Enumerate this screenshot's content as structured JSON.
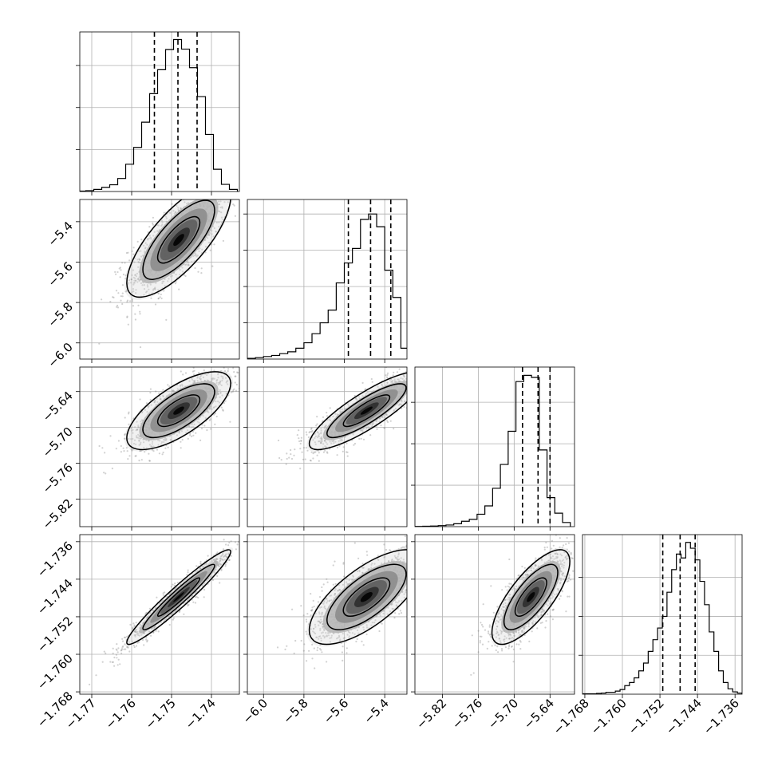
{
  "figure": {
    "type": "corner-plot",
    "variable_count": 4,
    "axis_ranges": [
      [
        -1.773,
        -1.733
      ],
      [
        -6.08,
        -5.29
      ],
      [
        -5.866,
        -5.599
      ],
      [
        -1.7685,
        -1.7345
      ]
    ],
    "grid": true
  },
  "chart_data": [
    {
      "type": "histogram",
      "variable_index": 0,
      "bins": [
        -1.7725,
        -1.7705,
        -1.7685,
        -1.7665,
        -1.7645,
        -1.7625,
        -1.7605,
        -1.7585,
        -1.7565,
        -1.7545,
        -1.7525,
        -1.7505,
        -1.7485,
        -1.7465,
        -1.7445,
        -1.7425,
        -1.7405,
        -1.7385,
        -1.7365,
        -1.7345
      ],
      "counts": [
        1,
        2,
        5,
        10,
        16,
        31,
        65,
        105,
        165,
        233,
        290,
        338,
        362,
        339,
        295,
        226,
        136,
        53,
        17,
        5
      ],
      "quantiles": [
        -1.7543,
        -1.7484,
        -1.7436
      ],
      "y_ticks": [
        100,
        200,
        300
      ],
      "ylim": [
        0,
        380
      ]
    },
    {
      "type": "histogram",
      "variable_index": 1,
      "bins": [
        -6.06,
        -6.02,
        -5.98,
        -5.94,
        -5.9,
        -5.86,
        -5.82,
        -5.78,
        -5.74,
        -5.7,
        -5.66,
        -5.62,
        -5.58,
        -5.54,
        -5.5,
        -5.46,
        -5.42,
        -5.38,
        -5.34,
        -5.3
      ],
      "counts": [
        2,
        4,
        7,
        10,
        15,
        20,
        30,
        45,
        70,
        100,
        135,
        210,
        265,
        305,
        385,
        400,
        365,
        245,
        170,
        30
      ],
      "quantiles": [
        -5.58,
        -5.47,
        -5.37
      ],
      "y_ticks": [
        100,
        200,
        300,
        400
      ],
      "ylim": [
        0,
        440
      ]
    },
    {
      "type": "histogram",
      "variable_index": 2,
      "bins": [
        -5.8595,
        -5.8465,
        -5.8335,
        -5.8205,
        -5.8075,
        -5.7945,
        -5.7815,
        -5.7685,
        -5.7555,
        -5.7425,
        -5.7295,
        -5.7165,
        -5.7035,
        -5.6905,
        -5.6775,
        -5.6645,
        -5.6515,
        -5.6385,
        -5.6255,
        -5.6125
      ],
      "counts": [
        1,
        2,
        3,
        5,
        8,
        14,
        26,
        35,
        60,
        100,
        185,
        300,
        460,
        700,
        730,
        720,
        370,
        140,
        65,
        20
      ],
      "quantiles": [
        -5.686,
        -5.66,
        -5.64
      ],
      "y_ticks": [
        200,
        400,
        600
      ],
      "ylim": [
        0,
        770
      ]
    },
    {
      "type": "histogram",
      "variable_index": 3,
      "bins": [
        -1.768,
        -1.767,
        -1.766,
        -1.765,
        -1.764,
        -1.763,
        -1.762,
        -1.761,
        -1.76,
        -1.759,
        -1.758,
        -1.757,
        -1.756,
        -1.755,
        -1.754,
        -1.753,
        -1.752,
        -1.751,
        -1.75,
        -1.749,
        -1.748,
        -1.747,
        -1.746,
        -1.745,
        -1.744,
        -1.743,
        -1.742,
        -1.741,
        -1.74,
        -1.739,
        -1.738,
        -1.737,
        -1.736,
        -1.735
      ],
      "counts": [
        1,
        1,
        1,
        2,
        3,
        5,
        5,
        8,
        12,
        22,
        30,
        42,
        60,
        80,
        110,
        140,
        170,
        200,
        262,
        320,
        360,
        350,
        390,
        375,
        345,
        290,
        230,
        160,
        110,
        60,
        30,
        14,
        6,
        3
      ],
      "quantiles": [
        -1.7514,
        -1.7477,
        -1.7445
      ],
      "y_ticks": [
        100,
        200,
        300
      ],
      "ylim": [
        0,
        410
      ]
    },
    {
      "type": "scatter-density",
      "x_index": 0,
      "y_index": 1,
      "mean": [
        -1.7482,
        -5.49
      ],
      "sd": [
        0.0062,
        0.135
      ],
      "corr": 0.75,
      "x_ticks": [
        -1.77,
        -1.76,
        -1.75,
        -1.74
      ],
      "y_ticks": [
        -6.0,
        -5.8,
        -5.6,
        -5.4
      ]
    },
    {
      "type": "scatter-density",
      "x_index": 0,
      "y_index": 2,
      "mean": [
        -1.7482,
        -5.672
      ],
      "sd": [
        0.0062,
        0.031
      ],
      "corr": 0.7,
      "y_ticks": [
        -5.82,
        -5.76,
        -5.7,
        -5.64
      ]
    },
    {
      "type": "scatter-density",
      "x_index": 0,
      "y_index": 3,
      "mean": [
        -1.7482,
        -1.7478
      ],
      "sd": [
        0.0062,
        0.0048
      ],
      "corr": 0.96,
      "y_ticks": [
        -1.768,
        -1.76,
        -1.752,
        -1.744,
        -1.736
      ]
    },
    {
      "type": "scatter-density",
      "x_index": 1,
      "y_index": 2,
      "mean": [
        -5.49,
        -5.672
      ],
      "sd": [
        0.135,
        0.031
      ],
      "corr": 0.85
    },
    {
      "type": "scatter-density",
      "x_index": 1,
      "y_index": 3,
      "mean": [
        -5.49,
        -1.7478
      ],
      "sd": [
        0.135,
        0.0048
      ],
      "corr": 0.7
    },
    {
      "type": "scatter-density",
      "x_index": 2,
      "y_index": 3,
      "mean": [
        -5.672,
        -1.7478
      ],
      "sd": [
        0.031,
        0.0048
      ],
      "corr": 0.75
    }
  ],
  "axis_tick_labels": {
    "x_var0": [
      "−1.77",
      "−1.76",
      "−1.75",
      "−1.74"
    ],
    "x_var1": [
      "−6.0",
      "−5.8",
      "−5.6",
      "−5.4"
    ],
    "x_var2": [
      "−5.82",
      "−5.76",
      "−5.70",
      "−5.64"
    ],
    "x_var3": [
      "−1.768",
      "−1.760",
      "−1.752",
      "−1.744",
      "−1.736"
    ],
    "y_var1": [
      "−6.0",
      "−5.8",
      "−5.6",
      "−5.4"
    ],
    "y_var2": [
      "−5.82",
      "−5.76",
      "−5.70",
      "−5.64"
    ],
    "y_var3": [
      "−1.768",
      "−1.760",
      "−1.752",
      "−1.744",
      "−1.736"
    ]
  }
}
